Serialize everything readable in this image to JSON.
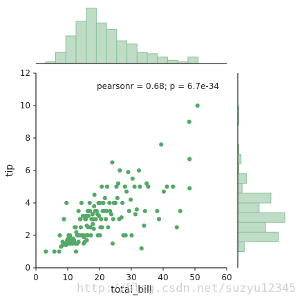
{
  "chart_data": [
    {
      "type": "scatter",
      "name": "joint",
      "xlabel": "total_bill",
      "ylabel": "tip",
      "xlim": [
        0,
        60
      ],
      "ylim": [
        0,
        12
      ],
      "xticks": [
        "0",
        "10",
        "20",
        "30",
        "40",
        "50",
        "60"
      ],
      "yticks": [
        "0",
        "2",
        "4",
        "6",
        "8",
        "10",
        "12"
      ],
      "annotation": "pearsonr = 0.68; p = 6.7e-34",
      "grid": false,
      "points": [
        [
          3.1,
          1.0
        ],
        [
          5.8,
          1.0
        ],
        [
          7.3,
          1.0
        ],
        [
          7.5,
          2.0
        ],
        [
          7.9,
          1.3
        ],
        [
          8.4,
          1.6
        ],
        [
          8.5,
          1.4
        ],
        [
          8.8,
          3.0
        ],
        [
          9.3,
          1.5
        ],
        [
          9.5,
          1.4
        ],
        [
          9.6,
          4.0
        ],
        [
          9.8,
          1.7
        ],
        [
          10.1,
          1.8
        ],
        [
          10.3,
          2.0
        ],
        [
          10.3,
          1.7
        ],
        [
          10.3,
          1.7
        ],
        [
          10.5,
          1.5
        ],
        [
          10.6,
          1.6
        ],
        [
          10.7,
          2.0
        ],
        [
          10.8,
          1.5
        ],
        [
          11.0,
          1.6
        ],
        [
          11.2,
          1.8
        ],
        [
          11.4,
          1.5
        ],
        [
          11.6,
          1.5
        ],
        [
          11.7,
          1.8
        ],
        [
          12.0,
          1.7
        ],
        [
          12.2,
          2.5
        ],
        [
          12.4,
          1.5
        ],
        [
          12.5,
          2.5
        ],
        [
          12.6,
          1.0
        ],
        [
          12.7,
          2.2
        ],
        [
          12.8,
          1.5
        ],
        [
          13.0,
          2.0
        ],
        [
          13.0,
          1.5
        ],
        [
          13.3,
          2.0
        ],
        [
          13.4,
          3.5
        ],
        [
          13.4,
          1.6
        ],
        [
          13.8,
          2.0
        ],
        [
          13.9,
          3.0
        ],
        [
          14.0,
          3.0
        ],
        [
          14.1,
          2.5
        ],
        [
          14.3,
          4.0
        ],
        [
          14.5,
          2.0
        ],
        [
          14.8,
          3.2
        ],
        [
          15.0,
          2.0
        ],
        [
          15.0,
          1.5
        ],
        [
          15.1,
          1.9
        ],
        [
          15.4,
          1.6
        ],
        [
          15.5,
          3.0
        ],
        [
          15.7,
          3.0
        ],
        [
          15.8,
          3.2
        ],
        [
          15.9,
          2.0
        ],
        [
          16.0,
          2.6
        ],
        [
          16.0,
          1.7
        ],
        [
          16.3,
          2.0
        ],
        [
          16.3,
          3.5
        ],
        [
          16.4,
          2.5
        ],
        [
          16.5,
          3.2
        ],
        [
          16.6,
          3.5
        ],
        [
          16.9,
          4.0
        ],
        [
          17.0,
          3.5
        ],
        [
          17.1,
          2.5
        ],
        [
          17.3,
          2.0
        ],
        [
          17.5,
          3.0
        ],
        [
          17.8,
          3.3
        ],
        [
          17.9,
          2.7
        ],
        [
          18.0,
          3.0
        ],
        [
          18.2,
          2.4
        ],
        [
          18.3,
          3.8
        ],
        [
          18.4,
          4.5
        ],
        [
          18.6,
          3.5
        ],
        [
          18.8,
          3.0
        ],
        [
          19.1,
          3.5
        ],
        [
          19.4,
          3.3
        ],
        [
          19.5,
          2.0
        ],
        [
          19.7,
          4.0
        ],
        [
          19.8,
          3.2
        ],
        [
          20.1,
          2.0
        ],
        [
          20.2,
          4.0
        ],
        [
          20.3,
          2.5
        ],
        [
          20.5,
          3.0
        ],
        [
          20.7,
          5.0
        ],
        [
          20.8,
          2.5
        ],
        [
          21.0,
          3.5
        ],
        [
          21.2,
          4.0
        ],
        [
          21.5,
          3.5
        ],
        [
          21.7,
          4.3
        ],
        [
          22.0,
          3.0
        ],
        [
          22.2,
          3.5
        ],
        [
          22.4,
          5.0
        ],
        [
          22.7,
          2.5
        ],
        [
          23.1,
          4.0
        ],
        [
          23.3,
          3.5
        ],
        [
          23.7,
          3.3
        ],
        [
          24.0,
          6.5
        ],
        [
          24.1,
          1.5
        ],
        [
          24.3,
          3.0
        ],
        [
          24.5,
          4.0
        ],
        [
          25.0,
          4.0
        ],
        [
          25.3,
          5.0
        ],
        [
          25.6,
          4.3
        ],
        [
          25.9,
          5.2
        ],
        [
          26.2,
          3.0
        ],
        [
          26.4,
          6.0
        ],
        [
          26.9,
          3.1
        ],
        [
          27.2,
          4.0
        ],
        [
          27.5,
          2.0
        ],
        [
          28.0,
          5.0
        ],
        [
          28.2,
          2.0
        ],
        [
          28.5,
          4.7
        ],
        [
          29.0,
          5.9
        ],
        [
          29.3,
          3.5
        ],
        [
          29.8,
          4.2
        ],
        [
          30.1,
          2.0
        ],
        [
          30.4,
          5.5
        ],
        [
          31.0,
          5.0
        ],
        [
          31.3,
          3.3
        ],
        [
          31.7,
          3.6
        ],
        [
          32.4,
          6.0
        ],
        [
          32.7,
          5.0
        ],
        [
          33.2,
          1.2
        ],
        [
          34.0,
          2.6
        ],
        [
          34.3,
          3.5
        ],
        [
          34.8,
          5.2
        ],
        [
          35.3,
          5.0
        ],
        [
          38.1,
          3.5
        ],
        [
          38.7,
          3.0
        ],
        [
          39.4,
          7.6
        ],
        [
          40.2,
          4.7
        ],
        [
          41.2,
          5.0
        ],
        [
          43.1,
          5.0
        ],
        [
          44.3,
          2.5
        ],
        [
          45.4,
          3.5
        ],
        [
          48.2,
          9.0
        ],
        [
          48.3,
          6.7
        ],
        [
          48.3,
          4.9
        ],
        [
          50.8,
          10.0
        ]
      ]
    },
    {
      "type": "bar",
      "name": "total_bill marginal histogram",
      "x_bin_edges": [
        3,
        6.2,
        9.4,
        12.6,
        15.8,
        19.0,
        22.2,
        25.4,
        28.6,
        31.8,
        35.0,
        38.2,
        41.4,
        44.6,
        47.8,
        51.0
      ],
      "values": [
        1,
        7,
        17,
        26,
        34,
        25,
        21,
        14,
        12,
        7,
        6,
        4,
        2,
        1,
        4
      ]
    },
    {
      "type": "bar",
      "name": "tip marginal histogram",
      "orientation": "horizontal",
      "y_bin_edges": [
        1.0,
        1.6,
        2.2,
        2.8,
        3.4,
        4.0,
        4.6,
        5.2,
        5.8,
        6.4,
        7.0,
        7.6,
        8.2,
        8.8,
        9.4,
        10.0
      ],
      "values": [
        6,
        38,
        26,
        44,
        20,
        31,
        4,
        8,
        1,
        3,
        1,
        0,
        0,
        1,
        1
      ]
    }
  ],
  "colors": {
    "points": "#55a868",
    "hist_fill": "#bfdcc6",
    "hist_edge": "#8cbf9a",
    "axes": "#222222"
  },
  "watermark": "http://blog.csdn.net/suzyu12345"
}
